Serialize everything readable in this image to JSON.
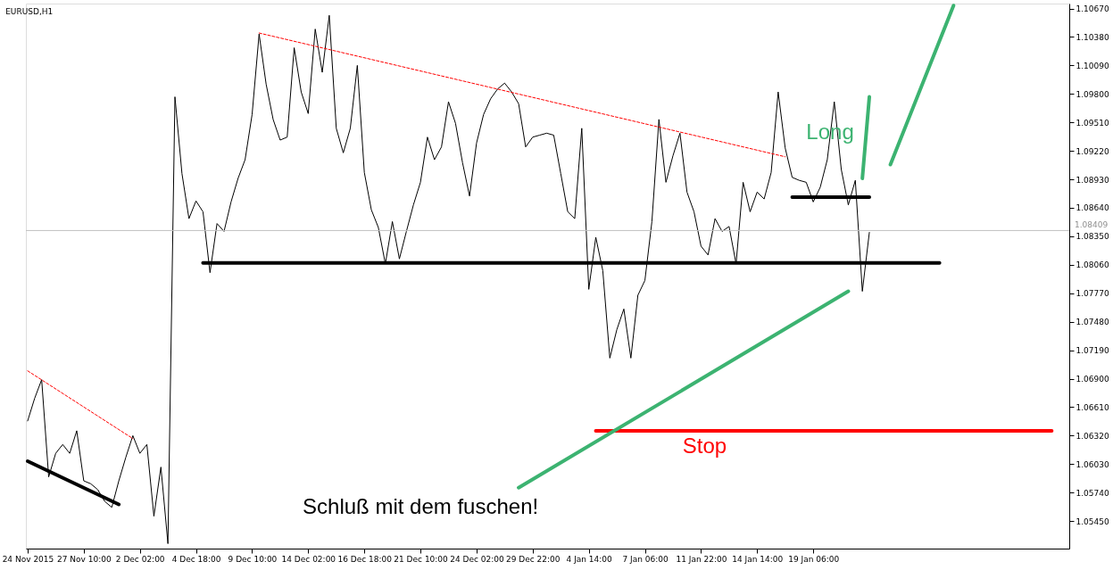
{
  "chart_data": {
    "type": "line",
    "title": "EURUSD,H1",
    "categories": [
      "24 Nov 2015",
      null,
      null,
      null,
      null,
      null,
      null,
      null,
      "27 Nov 10:00",
      null,
      null,
      null,
      null,
      null,
      null,
      null,
      "2 Dec 02:00",
      null,
      null,
      null,
      null,
      null,
      null,
      null,
      "4 Dec 18:00",
      null,
      null,
      null,
      null,
      null,
      null,
      null,
      "9 Dec 10:00",
      null,
      null,
      null,
      null,
      null,
      null,
      null,
      "14 Dec 02:00",
      null,
      null,
      null,
      null,
      null,
      null,
      null,
      "16 Dec 18:00",
      null,
      null,
      null,
      null,
      null,
      null,
      null,
      "21 Dec 10:00",
      null,
      null,
      null,
      null,
      null,
      null,
      null,
      "24 Dec 02:00",
      null,
      null,
      null,
      null,
      null,
      null,
      null,
      "29 Dec 22:00",
      null,
      null,
      null,
      null,
      null,
      null,
      null,
      "4 Jan 14:00",
      null,
      null,
      null,
      null,
      null,
      null,
      null,
      "7 Jan 06:00",
      null,
      null,
      null,
      null,
      null,
      null,
      null,
      "11 Jan 22:00",
      null,
      null,
      null,
      null,
      null,
      null,
      null,
      "14 Jan 14:00",
      null,
      null,
      null,
      null,
      null,
      null,
      null,
      "19 Jan 06:00",
      null,
      null,
      null,
      null,
      null,
      null,
      null,
      null,
      null,
      null,
      null,
      null,
      null,
      null,
      null,
      null,
      null,
      null,
      null,
      null,
      null,
      null,
      null,
      null,
      null,
      null,
      null,
      null,
      null,
      null,
      null,
      null,
      null,
      null,
      null,
      null
    ],
    "ylim": [
      1.0517,
      1.1072
    ],
    "yticks": [
      {
        "value": 1.0545,
        "label": "1.05450"
      },
      {
        "value": 1.0574,
        "label": "1.05740"
      },
      {
        "value": 1.0603,
        "label": "1.06030"
      },
      {
        "value": 1.0632,
        "label": "1.06320"
      },
      {
        "value": 1.0661,
        "label": "1.06610"
      },
      {
        "value": 1.069,
        "label": "1.06900"
      },
      {
        "value": 1.0719,
        "label": "1.07190"
      },
      {
        "value": 1.0748,
        "label": "1.07480"
      },
      {
        "value": 1.0777,
        "label": "1.07770"
      },
      {
        "value": 1.0806,
        "label": "1.08060"
      },
      {
        "value": 1.0835,
        "label": "1.08350"
      },
      {
        "value": 1.0864,
        "label": "1.08640"
      },
      {
        "value": 1.0893,
        "label": "1.08930"
      },
      {
        "value": 1.0922,
        "label": "1.09220"
      },
      {
        "value": 1.0951,
        "label": "1.09510"
      },
      {
        "value": 1.098,
        "label": "1.09800"
      },
      {
        "value": 1.1009,
        "label": "1.10090"
      },
      {
        "value": 1.1038,
        "label": "1.10380"
      },
      {
        "value": 1.1067,
        "label": "1.10670"
      }
    ],
    "grid": false,
    "marker": "none",
    "ref_lines": [
      {
        "axis": "y",
        "value": 1.08409,
        "label": "1.08409",
        "color": "#c0c0c0"
      }
    ],
    "annotations": [
      "Long",
      "Stop",
      "Schluß mit dem fuschen!"
    ],
    "series": [
      {
        "type": "line",
        "color": "#000000",
        "line_style": "solid",
        "values": [
          1.0647,
          1.067,
          1.0689,
          1.059,
          1.0614,
          1.0623,
          1.0614,
          1.0637,
          1.0586,
          1.0583,
          1.0577,
          1.0565,
          1.0559,
          1.0586,
          1.061,
          1.0632,
          1.0614,
          1.0623,
          1.055,
          1.06,
          1.0522,
          1.0977,
          1.0899,
          1.0853,
          1.0871,
          1.086,
          1.0798,
          1.0848,
          1.084,
          1.087,
          1.0894,
          1.0913,
          1.0959,
          1.1041,
          1.099,
          1.0954,
          1.0933,
          1.0936,
          1.1027,
          1.0982,
          1.096,
          1.1046,
          1.1002,
          1.106,
          1.0945,
          1.092,
          1.0945,
          1.1009,
          1.09,
          1.0862,
          1.0844,
          1.0807,
          1.085,
          1.0812,
          1.084,
          1.0867,
          1.089,
          1.0936,
          1.0913,
          1.0926,
          1.0972,
          1.095,
          1.091,
          1.0876,
          1.093,
          1.0959,
          1.0975,
          1.0985,
          1.0991,
          1.0982,
          1.097,
          1.0926,
          1.0936,
          1.0938,
          1.094,
          1.0938,
          1.0899,
          1.086,
          1.0853,
          1.0945,
          1.0781,
          1.0834,
          1.08,
          1.0711,
          1.074,
          1.0761,
          1.0711,
          1.0775,
          1.079,
          1.085,
          1.0954,
          1.089,
          1.0917,
          1.094,
          1.088,
          1.086,
          1.0825,
          1.0816,
          1.0853,
          1.084,
          1.0845,
          1.0807,
          1.089,
          1.086,
          1.088,
          1.0873,
          1.09,
          1.0982,
          1.0925,
          1.0895,
          1.0892,
          1.089,
          1.087,
          1.0885,
          1.0913,
          1.0972,
          1.0903,
          1.0867,
          1.0892,
          1.0779,
          1.0839,
          null,
          null,
          null,
          null,
          null,
          null,
          null,
          null,
          null,
          null,
          null,
          null,
          null,
          null,
          null,
          null,
          null,
          null,
          null,
          null,
          null,
          null,
          null,
          null,
          null,
          null,
          null,
          null
        ]
      },
      {
        "type": "line",
        "color": "#ff0000",
        "line_style": "dashed",
        "values": [
          1.0698,
          null,
          null,
          null,
          null,
          null,
          null,
          null,
          null,
          null,
          null,
          null,
          null,
          null,
          null,
          1.0629,
          null,
          null,
          null,
          null,
          null,
          null,
          null,
          null,
          null,
          null,
          null,
          null,
          null,
          null,
          null,
          null,
          null,
          null,
          null,
          null,
          null,
          null,
          null,
          null,
          null,
          null,
          null,
          null,
          null,
          null,
          null,
          null,
          null,
          null,
          null,
          null,
          null,
          null,
          null,
          null,
          null,
          null,
          null,
          null,
          null,
          null,
          null,
          null,
          null,
          null,
          null,
          null,
          null,
          null,
          null,
          null,
          null,
          null,
          null,
          null,
          null,
          null,
          null,
          null,
          null,
          null,
          null,
          null,
          null,
          null,
          null,
          null,
          null,
          null,
          null,
          null,
          null,
          null,
          null,
          null,
          null,
          null,
          null,
          null,
          null,
          null,
          null,
          null,
          null,
          null,
          null,
          null,
          null,
          null,
          null,
          null,
          null,
          null,
          null,
          null,
          null,
          null,
          null,
          null,
          null,
          null,
          null,
          null,
          null,
          null,
          null,
          null,
          null,
          null,
          null,
          null,
          null,
          null,
          null,
          null,
          null,
          null,
          null,
          null,
          null,
          null,
          null,
          null,
          null,
          null,
          null,
          null,
          null
        ]
      },
      {
        "type": "line",
        "color": "#ff0000",
        "line_style": "dashed",
        "values": [
          null,
          null,
          null,
          null,
          null,
          null,
          null,
          null,
          null,
          null,
          null,
          null,
          null,
          null,
          null,
          null,
          null,
          null,
          null,
          null,
          null,
          null,
          null,
          null,
          null,
          null,
          null,
          null,
          null,
          null,
          null,
          null,
          null,
          1.1042,
          null,
          null,
          null,
          null,
          null,
          null,
          null,
          null,
          null,
          null,
          null,
          null,
          null,
          null,
          null,
          null,
          null,
          null,
          null,
          null,
          null,
          null,
          null,
          null,
          null,
          null,
          null,
          null,
          null,
          null,
          null,
          null,
          null,
          null,
          null,
          null,
          null,
          null,
          null,
          null,
          null,
          null,
          null,
          null,
          null,
          null,
          null,
          null,
          null,
          null,
          null,
          null,
          null,
          null,
          null,
          null,
          null,
          null,
          null,
          null,
          null,
          null,
          null,
          null,
          null,
          null,
          null,
          null,
          null,
          null,
          null,
          null,
          null,
          null,
          1.0916,
          null,
          null,
          null,
          null,
          null,
          null,
          null,
          null,
          null,
          null,
          null,
          null,
          null,
          null,
          null,
          null,
          null,
          null,
          null,
          null,
          null,
          null,
          null,
          null,
          null,
          null,
          null,
          null,
          null,
          null,
          null,
          null,
          null,
          null,
          null,
          null,
          null,
          null,
          null,
          null
        ]
      },
      {
        "type": "line",
        "color": "#000000",
        "line_style": "solid",
        "values": [
          1.0606,
          null,
          null,
          null,
          null,
          null,
          null,
          null,
          null,
          null,
          null,
          null,
          null,
          1.0562,
          null,
          null,
          null,
          null,
          null,
          null,
          null,
          null,
          null,
          null,
          null,
          null,
          null,
          null,
          null,
          null,
          null,
          null,
          null,
          null,
          null,
          null,
          null,
          null,
          null,
          null,
          null,
          null,
          null,
          null,
          null,
          null,
          null,
          null,
          null,
          null,
          null,
          null,
          null,
          null,
          null,
          null,
          null,
          null,
          null,
          null,
          null,
          null,
          null,
          null,
          null,
          null,
          null,
          null,
          null,
          null,
          null,
          null,
          null,
          null,
          null,
          null,
          null,
          null,
          null,
          null,
          null,
          null,
          null,
          null,
          null,
          null,
          null,
          null,
          null,
          null,
          null,
          null,
          null,
          null,
          null,
          null,
          null,
          null,
          null,
          null,
          null,
          null,
          null,
          null,
          null,
          null,
          null,
          null,
          null,
          null,
          null,
          null,
          null,
          null,
          null,
          null,
          null,
          null,
          null,
          null,
          null,
          null,
          null,
          null,
          null,
          null,
          null,
          null,
          null,
          null,
          null,
          null,
          null,
          null,
          null,
          null,
          null,
          null,
          null,
          null,
          null,
          null,
          null,
          null,
          null,
          null,
          null,
          null,
          null
        ]
      },
      {
        "type": "line",
        "color": "#000000",
        "line_style": "solid",
        "values": [
          null,
          null,
          null,
          null,
          null,
          null,
          null,
          null,
          null,
          null,
          null,
          null,
          null,
          null,
          null,
          null,
          null,
          null,
          null,
          null,
          null,
          null,
          null,
          null,
          null,
          1.0808,
          null,
          null,
          null,
          null,
          null,
          null,
          null,
          null,
          null,
          null,
          null,
          null,
          null,
          null,
          null,
          null,
          null,
          null,
          null,
          null,
          null,
          null,
          null,
          null,
          null,
          null,
          null,
          null,
          null,
          null,
          null,
          null,
          null,
          null,
          null,
          null,
          null,
          null,
          null,
          null,
          null,
          null,
          null,
          null,
          null,
          null,
          null,
          null,
          null,
          null,
          null,
          null,
          null,
          null,
          null,
          null,
          null,
          null,
          null,
          null,
          null,
          null,
          null,
          null,
          null,
          null,
          null,
          null,
          null,
          null,
          null,
          null,
          null,
          null,
          null,
          null,
          null,
          null,
          null,
          null,
          null,
          null,
          null,
          null,
          null,
          null,
          null,
          null,
          null,
          null,
          null,
          null,
          null,
          null,
          null,
          null,
          null,
          null,
          null,
          null,
          null,
          null,
          null,
          null,
          1.0808,
          null,
          null,
          null,
          null,
          null,
          null,
          null,
          null,
          null,
          null,
          null,
          null,
          null,
          null,
          null,
          null,
          null,
          null
        ]
      },
      {
        "type": "line",
        "color": "#000000",
        "line_style": "solid",
        "values": [
          null,
          null,
          null,
          null,
          null,
          null,
          null,
          null,
          null,
          null,
          null,
          null,
          null,
          null,
          null,
          null,
          null,
          null,
          null,
          null,
          null,
          null,
          null,
          null,
          null,
          null,
          null,
          null,
          null,
          null,
          null,
          null,
          null,
          null,
          null,
          null,
          null,
          null,
          null,
          null,
          null,
          null,
          null,
          null,
          null,
          null,
          null,
          null,
          null,
          null,
          null,
          null,
          null,
          null,
          null,
          null,
          null,
          null,
          null,
          null,
          null,
          null,
          null,
          null,
          null,
          null,
          null,
          null,
          null,
          null,
          null,
          null,
          null,
          null,
          null,
          null,
          null,
          null,
          null,
          null,
          null,
          null,
          null,
          null,
          null,
          null,
          null,
          null,
          null,
          null,
          null,
          null,
          null,
          null,
          null,
          null,
          null,
          null,
          null,
          null,
          null,
          null,
          null,
          null,
          null,
          null,
          null,
          null,
          null,
          1.0875,
          null,
          null,
          null,
          null,
          null,
          null,
          null,
          null,
          null,
          null,
          1.0875,
          null,
          null,
          null,
          null,
          null,
          null,
          null,
          null,
          null,
          null,
          null,
          null,
          null,
          null,
          null,
          null,
          null,
          null,
          null,
          null,
          null,
          null,
          null,
          null,
          null,
          null,
          null,
          null
        ]
      },
      {
        "type": "line",
        "color": "#ff0000",
        "line_style": "solid",
        "values": [
          null,
          null,
          null,
          null,
          null,
          null,
          null,
          null,
          null,
          null,
          null,
          null,
          null,
          null,
          null,
          null,
          null,
          null,
          null,
          null,
          null,
          null,
          null,
          null,
          null,
          null,
          null,
          null,
          null,
          null,
          null,
          null,
          null,
          null,
          null,
          null,
          null,
          null,
          null,
          null,
          null,
          null,
          null,
          null,
          null,
          null,
          null,
          null,
          null,
          null,
          null,
          null,
          null,
          null,
          null,
          null,
          null,
          null,
          null,
          null,
          null,
          null,
          null,
          null,
          null,
          null,
          null,
          null,
          null,
          null,
          null,
          null,
          null,
          null,
          null,
          null,
          null,
          null,
          null,
          null,
          null,
          1.0637,
          null,
          null,
          null,
          null,
          null,
          null,
          null,
          null,
          null,
          null,
          null,
          null,
          null,
          null,
          null,
          null,
          null,
          null,
          null,
          null,
          null,
          null,
          null,
          null,
          null,
          null,
          null,
          null,
          null,
          null,
          null,
          null,
          null,
          null,
          null,
          null,
          null,
          null,
          null,
          null,
          null,
          null,
          null,
          null,
          null,
          null,
          null,
          null,
          null,
          null,
          null,
          null,
          null,
          null,
          null,
          null,
          null,
          null,
          null,
          null,
          null,
          null,
          null,
          null,
          1.0637,
          null,
          null
        ]
      },
      {
        "type": "line",
        "color": "#3cb371",
        "line_style": "solid",
        "values": [
          null,
          null,
          null,
          null,
          null,
          null,
          null,
          null,
          null,
          null,
          null,
          null,
          null,
          null,
          null,
          null,
          null,
          null,
          null,
          null,
          null,
          null,
          null,
          null,
          null,
          null,
          null,
          null,
          null,
          null,
          null,
          null,
          null,
          null,
          null,
          null,
          null,
          null,
          null,
          null,
          null,
          null,
          null,
          null,
          null,
          null,
          null,
          null,
          null,
          null,
          null,
          null,
          null,
          null,
          null,
          null,
          null,
          null,
          null,
          null,
          null,
          null,
          null,
          null,
          null,
          null,
          null,
          null,
          null,
          null,
          1.0579,
          null,
          null,
          null,
          null,
          null,
          null,
          null,
          null,
          null,
          null,
          null,
          null,
          null,
          null,
          null,
          null,
          null,
          null,
          null,
          null,
          null,
          null,
          null,
          null,
          null,
          null,
          null,
          null,
          null,
          null,
          null,
          null,
          null,
          null,
          null,
          null,
          null,
          null,
          null,
          null,
          null,
          null,
          null,
          null,
          null,
          null,
          1.0779,
          null,
          null,
          null,
          null,
          null,
          null,
          null,
          null,
          null,
          null,
          null,
          null,
          null,
          null,
          null,
          null,
          null,
          null,
          null,
          null,
          null,
          null,
          null,
          null,
          null,
          null,
          null,
          null,
          null,
          null,
          null
        ]
      },
      {
        "type": "line",
        "color": "#3cb371",
        "line_style": "solid",
        "values": [
          null,
          null,
          null,
          null,
          null,
          null,
          null,
          null,
          null,
          null,
          null,
          null,
          null,
          null,
          null,
          null,
          null,
          null,
          null,
          null,
          null,
          null,
          null,
          null,
          null,
          null,
          null,
          null,
          null,
          null,
          null,
          null,
          null,
          null,
          null,
          null,
          null,
          null,
          null,
          null,
          null,
          null,
          null,
          null,
          null,
          null,
          null,
          null,
          null,
          null,
          null,
          null,
          null,
          null,
          null,
          null,
          null,
          null,
          null,
          null,
          null,
          null,
          null,
          null,
          null,
          null,
          null,
          null,
          null,
          null,
          null,
          null,
          null,
          null,
          null,
          null,
          null,
          null,
          null,
          null,
          null,
          null,
          null,
          null,
          null,
          null,
          null,
          null,
          null,
          null,
          null,
          null,
          null,
          null,
          null,
          null,
          null,
          null,
          null,
          null,
          null,
          null,
          null,
          null,
          null,
          null,
          null,
          null,
          null,
          null,
          null,
          null,
          null,
          null,
          null,
          null,
          null,
          null,
          null,
          1.0894,
          1.0977,
          null,
          null,
          null,
          null,
          null,
          null,
          null,
          null,
          null,
          null,
          null,
          null,
          null,
          null,
          null,
          null,
          null,
          null,
          null,
          null,
          null,
          null,
          null,
          null,
          null,
          null,
          null,
          null
        ]
      },
      {
        "type": "line",
        "color": "#3cb371",
        "line_style": "solid",
        "values": [
          null,
          null,
          null,
          null,
          null,
          null,
          null,
          null,
          null,
          null,
          null,
          null,
          null,
          null,
          null,
          null,
          null,
          null,
          null,
          null,
          null,
          null,
          null,
          null,
          null,
          null,
          null,
          null,
          null,
          null,
          null,
          null,
          null,
          null,
          null,
          null,
          null,
          null,
          null,
          null,
          null,
          null,
          null,
          null,
          null,
          null,
          null,
          null,
          null,
          null,
          null,
          null,
          null,
          null,
          null,
          null,
          null,
          null,
          null,
          null,
          null,
          null,
          null,
          null,
          null,
          null,
          null,
          null,
          null,
          null,
          null,
          null,
          null,
          null,
          null,
          null,
          null,
          null,
          null,
          null,
          null,
          null,
          null,
          null,
          null,
          null,
          null,
          null,
          null,
          null,
          null,
          null,
          null,
          null,
          null,
          null,
          null,
          null,
          null,
          null,
          null,
          null,
          null,
          null,
          null,
          null,
          null,
          null,
          null,
          null,
          null,
          null,
          null,
          null,
          null,
          null,
          null,
          null,
          null,
          null,
          null,
          null,
          null,
          1.0908,
          null,
          null,
          null,
          null,
          null,
          null,
          null,
          null,
          1.107,
          null,
          null,
          null,
          null,
          null,
          null,
          null,
          null,
          null,
          null,
          null,
          null,
          null,
          null,
          null,
          null
        ]
      }
    ]
  }
}
